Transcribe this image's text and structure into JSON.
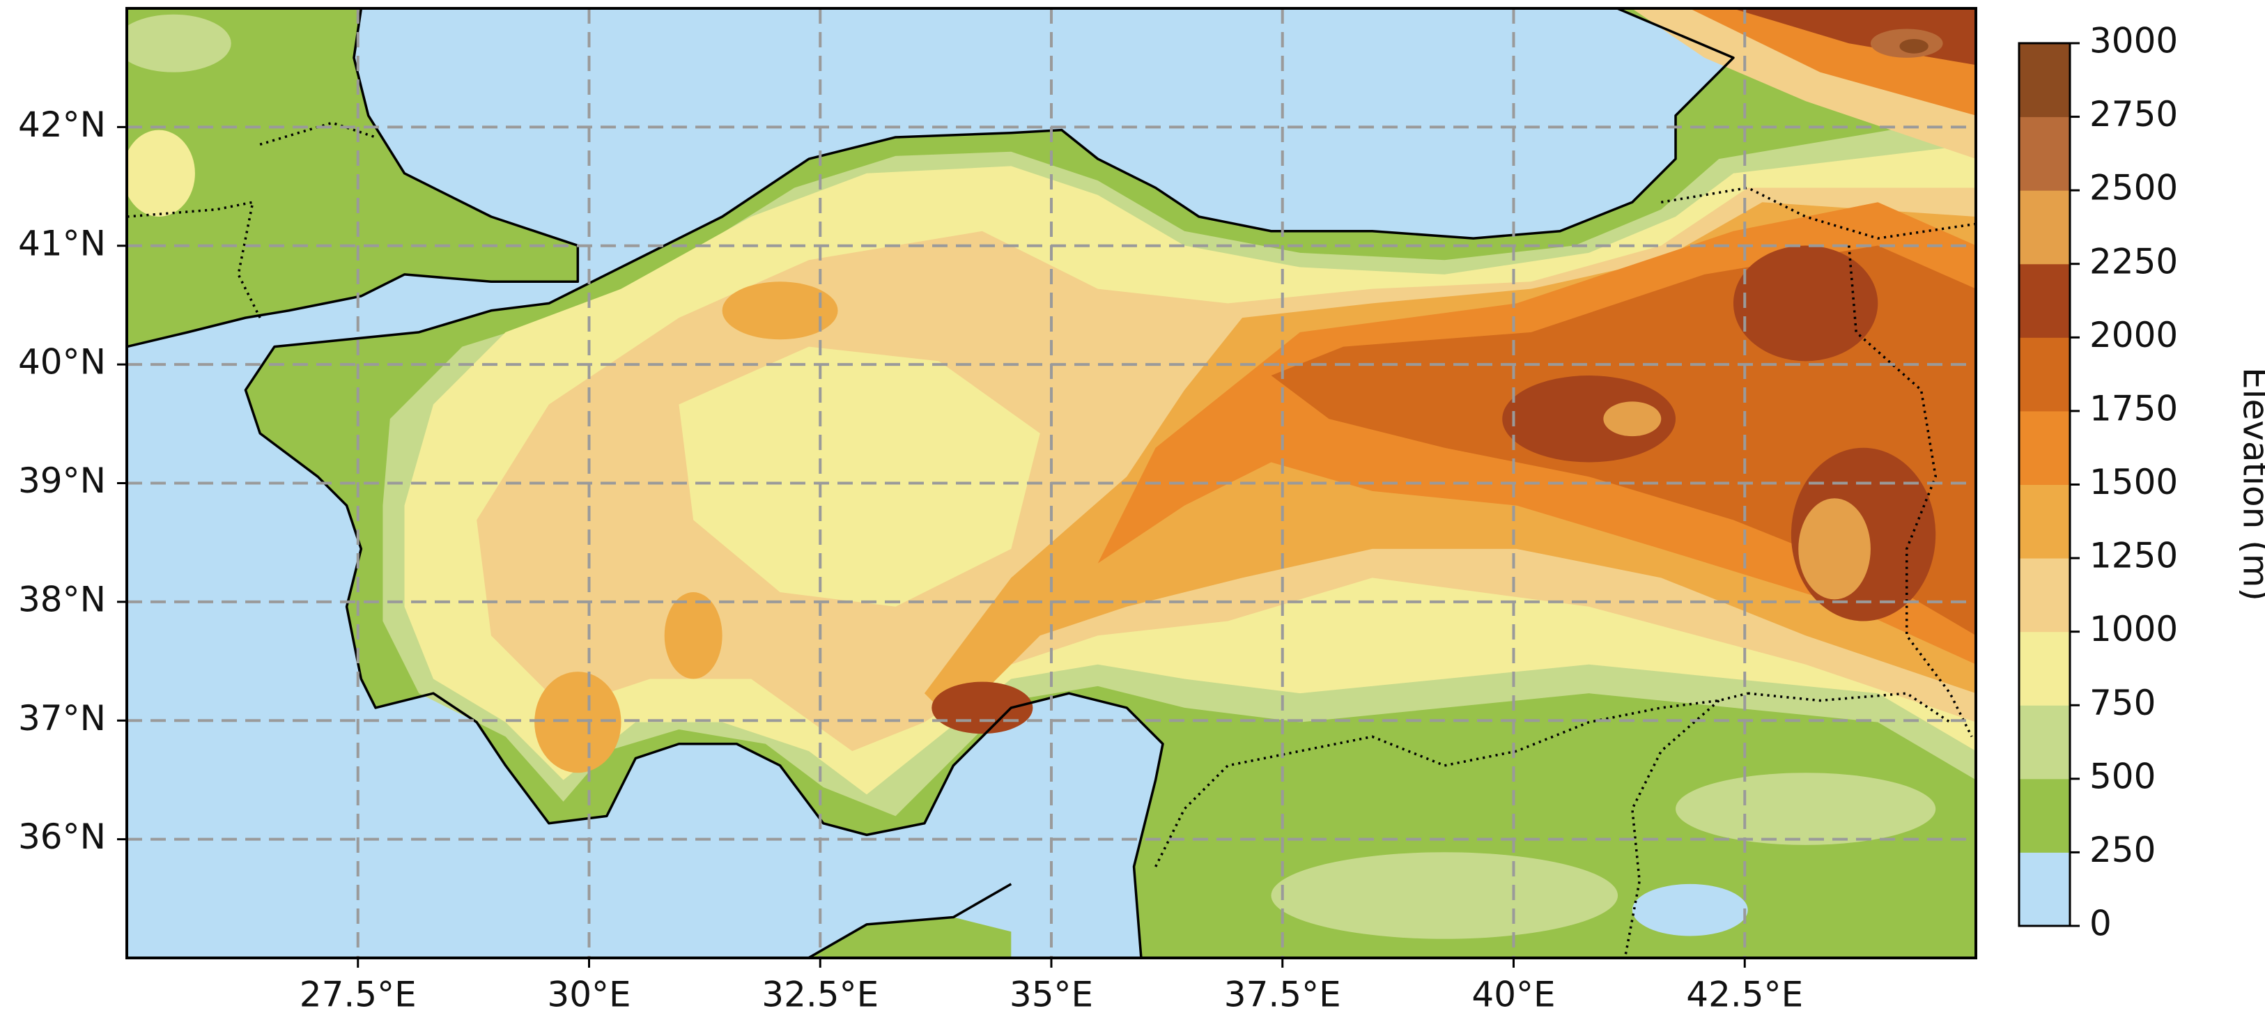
{
  "map": {
    "xlim": [
      25,
      45
    ],
    "ylim": [
      35,
      43
    ],
    "xticks": [
      {
        "value": 27.5,
        "label": "27.5°E"
      },
      {
        "value": 30,
        "label": "30°E"
      },
      {
        "value": 32.5,
        "label": "32.5°E"
      },
      {
        "value": 35,
        "label": "35°E"
      },
      {
        "value": 37.5,
        "label": "37.5°E"
      },
      {
        "value": 40,
        "label": "40°E"
      },
      {
        "value": 42.5,
        "label": "42.5°E"
      }
    ],
    "yticks": [
      {
        "value": 36,
        "label": "36°N"
      },
      {
        "value": 37,
        "label": "37°N"
      },
      {
        "value": 38,
        "label": "38°N"
      },
      {
        "value": 39,
        "label": "39°N"
      },
      {
        "value": 40,
        "label": "40°N"
      },
      {
        "value": 41,
        "label": "41°N"
      },
      {
        "value": 42,
        "label": "42°N"
      }
    ],
    "grid": true,
    "colorbar": {
      "label": "Elevation (m)",
      "ticks": [
        0,
        250,
        500,
        750,
        1000,
        1250,
        1500,
        1750,
        2000,
        2250,
        2500,
        2750,
        3000
      ],
      "colors": [
        "#b8ddf5",
        "#98c24a",
        "#c6da8c",
        "#f4ed98",
        "#f3d08a",
        "#eeab45",
        "#ec8a2a",
        "#d26a1c",
        "#a6441b",
        "#e4a04a",
        "#b86c3a",
        "#8c4b20"
      ]
    }
  }
}
